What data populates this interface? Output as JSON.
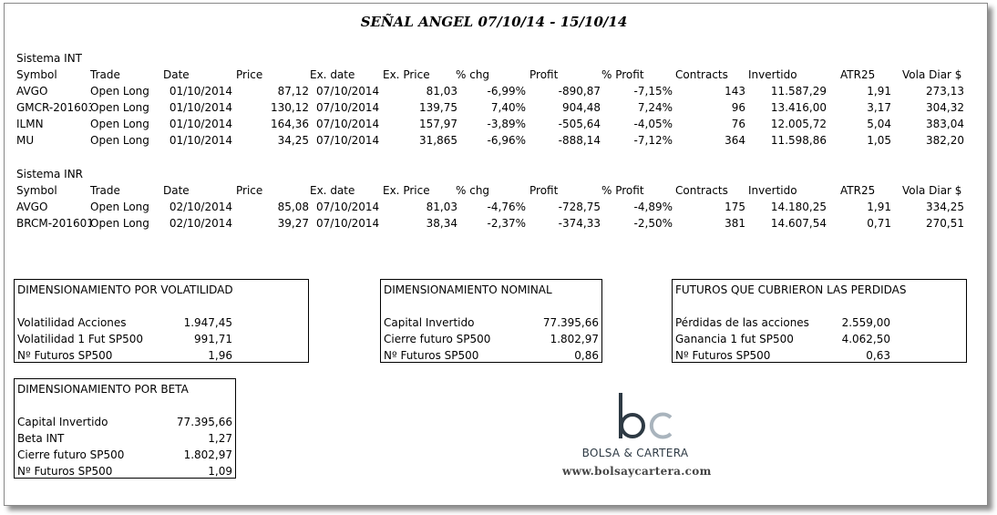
{
  "title": "SEÑAL ANGEL 07/10/14 - 15/10/14",
  "headers": [
    "Symbol",
    "Trade",
    "Date",
    "Price",
    "Ex. date",
    "Ex. Price",
    "% chg",
    "Profit",
    "% Profit",
    "Contracts",
    "Invertido",
    "ATR25",
    "Vola Diar $"
  ],
  "systems": [
    {
      "name": "Sistema INT",
      "rows": [
        [
          "AVGO",
          "Open Long",
          "01/10/2014",
          "87,12",
          "07/10/2014",
          "81,03",
          "-6,99%",
          "-890,87",
          "-7,15%",
          "143",
          "11.587,29",
          "1,91",
          "273,13"
        ],
        [
          "GMCR-201603",
          "Open Long",
          "01/10/2014",
          "130,12",
          "07/10/2014",
          "139,75",
          "7,40%",
          "904,48",
          "7,24%",
          "96",
          "13.416,00",
          "3,17",
          "304,32"
        ],
        [
          "ILMN",
          "Open Long",
          "01/10/2014",
          "164,36",
          "07/10/2014",
          "157,97",
          "-3,89%",
          "-505,64",
          "-4,05%",
          "76",
          "12.005,72",
          "5,04",
          "383,04"
        ],
        [
          "MU",
          "Open Long",
          "01/10/2014",
          "34,25",
          "07/10/2014",
          "31,865",
          "-6,96%",
          "-888,14",
          "-7,12%",
          "364",
          "11.598,86",
          "1,05",
          "382,20"
        ]
      ]
    },
    {
      "name": "Sistema INR",
      "rows": [
        [
          "AVGO",
          "Open Long",
          "02/10/2014",
          "85,08",
          "07/10/2014",
          "81,03",
          "-4,76%",
          "-728,75",
          "-4,89%",
          "175",
          "14.180,25",
          "1,91",
          "334,25"
        ],
        [
          "BRCM-201601",
          "Open Long",
          "02/10/2014",
          "39,27",
          "07/10/2014",
          "38,34",
          "-2,37%",
          "-374,33",
          "-2,50%",
          "381",
          "14.607,54",
          "0,71",
          "270,51"
        ]
      ]
    }
  ],
  "boxes": [
    {
      "title": "DIMENSIONAMIENTO POR VOLATILIDAD",
      "rows": [
        [
          "Volatilidad Acciones",
          "1.947,45"
        ],
        [
          "Volatilidad 1 Fut SP500",
          "991,71"
        ],
        [
          "Nº Futuros SP500",
          "1,96"
        ]
      ]
    },
    {
      "title": "DIMENSIONAMIENTO NOMINAL",
      "rows": [
        [
          "Capital Invertido",
          "77.395,66"
        ],
        [
          "Cierre futuro SP500",
          "1.802,97"
        ],
        [
          "Nº Futuros SP500",
          "0,86"
        ]
      ]
    },
    {
      "title": "FUTUROS QUE CUBRIERON LAS PERDIDAS",
      "rows": [
        [
          "Pérdidas de las acciones",
          "2.559,00"
        ],
        [
          "Ganancia 1 fut SP500",
          "4.062,50"
        ],
        [
          "Nº Futuros SP500",
          "0,63"
        ]
      ]
    },
    {
      "title": "DIMENSIONAMIENTO POR BETA",
      "rows": [
        [
          "Capital Invertido",
          "77.395,66"
        ],
        [
          "Beta INT",
          "1,27"
        ],
        [
          "Cierre futuro SP500",
          "1.802,97"
        ],
        [
          "Nº Futuros SP500",
          "1,09"
        ]
      ]
    }
  ],
  "logo": {
    "text": "BOLSA & CARTERA",
    "url": "www.bolsaycartera.com",
    "dark_color": "#2e3a44",
    "accent_color": "#a9b4bd"
  }
}
